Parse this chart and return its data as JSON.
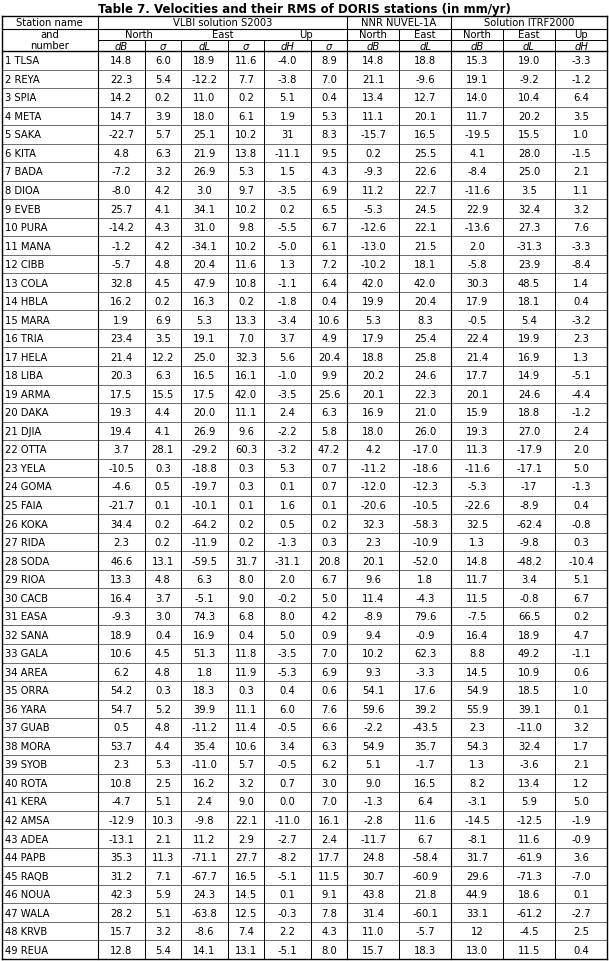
{
  "title": "Table 7. Velocities and their RMS of DORIS stations (in mm/yr)",
  "rows": [
    [
      "1 TLSA",
      "14.8",
      "6.0",
      "18.9",
      "11.6",
      "-4.0",
      "8.9",
      "14.8",
      "18.8",
      "15.3",
      "19.0",
      "-3.3"
    ],
    [
      "2 REYA",
      "22.3",
      "5.4",
      "-12.2",
      "7.7",
      "-3.8",
      "7.0",
      "21.1",
      "-9.6",
      "19.1",
      "-9.2",
      "-1.2"
    ],
    [
      "3 SPIA",
      "14.2",
      "0.2",
      "11.0",
      "0.2",
      "5.1",
      "0.4",
      "13.4",
      "12.7",
      "14.0",
      "10.4",
      "6.4"
    ],
    [
      "4 META",
      "14.7",
      "3.9",
      "18.0",
      "6.1",
      "1.9",
      "5.3",
      "11.1",
      "20.1",
      "11.7",
      "20.2",
      "3.5"
    ],
    [
      "5 SAKA",
      "-22.7",
      "5.7",
      "25.1",
      "10.2",
      "31",
      "8.3",
      "-15.7",
      "16.5",
      "-19.5",
      "15.5",
      "1.0"
    ],
    [
      "6 KITA",
      "4.8",
      "6.3",
      "21.9",
      "13.8",
      "-11.1",
      "9.5",
      "0.2",
      "25.5",
      "4.1",
      "28.0",
      "-1.5"
    ],
    [
      "7 BADA",
      "-7.2",
      "3.2",
      "26.9",
      "5.3",
      "1.5",
      "4.3",
      "-9.3",
      "22.6",
      "-8.4",
      "25.0",
      "2.1"
    ],
    [
      "8 DIOA",
      "-8.0",
      "4.2",
      "3.0",
      "9.7",
      "-3.5",
      "6.9",
      "11.2",
      "22.7",
      "-11.6",
      "3.5",
      "1.1"
    ],
    [
      "9 EVEB",
      "25.7",
      "4.1",
      "34.1",
      "10.2",
      "0.2",
      "6.5",
      "-5.3",
      "24.5",
      "22.9",
      "32.4",
      "3.2"
    ],
    [
      "10 PURA",
      "-14.2",
      "4.3",
      "31.0",
      "9.8",
      "-5.5",
      "6.7",
      "-12.6",
      "22.1",
      "-13.6",
      "27.3",
      "7.6"
    ],
    [
      "11 MANA",
      "-1.2",
      "4.2",
      "-34.1",
      "10.2",
      "-5.0",
      "6.1",
      "-13.0",
      "21.5",
      "2.0",
      "-31.3",
      "-3.3"
    ],
    [
      "12 CIBB",
      "-5.7",
      "4.8",
      "20.4",
      "11.6",
      "1.3",
      "7.2",
      "-10.2",
      "18.1",
      "-5.8",
      "23.9",
      "-8.4"
    ],
    [
      "13 COLA",
      "32.8",
      "4.5",
      "47.9",
      "10.8",
      "-1.1",
      "6.4",
      "42.0",
      "42.0",
      "30.3",
      "48.5",
      "1.4"
    ],
    [
      "14 HBLA",
      "16.2",
      "0.2",
      "16.3",
      "0.2",
      "-1.8",
      "0.4",
      "19.9",
      "20.4",
      "17.9",
      "18.1",
      "0.4"
    ],
    [
      "15 MARA",
      "1.9",
      "6.9",
      "5.3",
      "13.3",
      "-3.4",
      "10.6",
      "5.3",
      "8.3",
      "-0.5",
      "5.4",
      "-3.2"
    ],
    [
      "16 TRIA",
      "23.4",
      "3.5",
      "19.1",
      "7.0",
      "3.7",
      "4.9",
      "17.9",
      "25.4",
      "22.4",
      "19.9",
      "2.3"
    ],
    [
      "17 HELA",
      "21.4",
      "12.2",
      "25.0",
      "32.3",
      "5.6",
      "20.4",
      "18.8",
      "25.8",
      "21.4",
      "16.9",
      "1.3"
    ],
    [
      "18 LIBA",
      "20.3",
      "6.3",
      "16.5",
      "16.1",
      "-1.0",
      "9.9",
      "20.2",
      "24.6",
      "17.7",
      "14.9",
      "-5.1"
    ],
    [
      "19 ARMA",
      "17.5",
      "15.5",
      "17.5",
      "42.0",
      "-3.5",
      "25.6",
      "20.1",
      "22.3",
      "20.1",
      "24.6",
      "-4.4"
    ],
    [
      "20 DAKA",
      "19.3",
      "4.4",
      "20.0",
      "11.1",
      "2.4",
      "6.3",
      "16.9",
      "21.0",
      "15.9",
      "18.8",
      "-1.2"
    ],
    [
      "21 DJIA",
      "19.4",
      "4.1",
      "26.9",
      "9.6",
      "-2.2",
      "5.8",
      "18.0",
      "26.0",
      "19.3",
      "27.0",
      "2.4"
    ],
    [
      "22 OTTA",
      "3.7",
      "28.1",
      "-29.2",
      "60.3",
      "-3.2",
      "47.2",
      "4.2",
      "-17.0",
      "11.3",
      "-17.9",
      "2.0"
    ],
    [
      "23 YELA",
      "-10.5",
      "0.3",
      "-18.8",
      "0.3",
      "5.3",
      "0.7",
      "-11.2",
      "-18.6",
      "-11.6",
      "-17.1",
      "5.0"
    ],
    [
      "24 GOMA",
      "-4.6",
      "0.5",
      "-19.7",
      "0.3",
      "0.1",
      "0.7",
      "-12.0",
      "-12.3",
      "-5.3",
      "-17",
      "-1.3"
    ],
    [
      "25 FAIA",
      "-21.7",
      "0.1",
      "-10.1",
      "0.1",
      "1.6",
      "0.1",
      "-20.6",
      "-10.5",
      "-22.6",
      "-8.9",
      "0.4"
    ],
    [
      "26 KOKA",
      "34.4",
      "0.2",
      "-64.2",
      "0.2",
      "0.5",
      "0.2",
      "32.3",
      "-58.3",
      "32.5",
      "-62.4",
      "-0.8"
    ],
    [
      "27 RIDA",
      "2.3",
      "0.2",
      "-11.9",
      "0.2",
      "-1.3",
      "0.3",
      "2.3",
      "-10.9",
      "1.3",
      "-9.8",
      "0.3"
    ],
    [
      "28 SODA",
      "46.6",
      "13.1",
      "-59.5",
      "31.7",
      "-31.1",
      "20.8",
      "20.1",
      "-52.0",
      "14.8",
      "-48.2",
      "-10.4"
    ],
    [
      "29 RIOA",
      "13.3",
      "4.8",
      "6.3",
      "8.0",
      "2.0",
      "6.7",
      "9.6",
      "1.8",
      "11.7",
      "3.4",
      "5.1"
    ],
    [
      "30 CACB",
      "16.4",
      "3.7",
      "-5.1",
      "9.0",
      "-0.2",
      "5.0",
      "11.4",
      "-4.3",
      "11.5",
      "-0.8",
      "6.7"
    ],
    [
      "31 EASA",
      "-9.3",
      "3.0",
      "74.3",
      "6.8",
      "8.0",
      "4.2",
      "-8.9",
      "79.6",
      "-7.5",
      "66.5",
      "0.2"
    ],
    [
      "32 SANA",
      "18.9",
      "0.4",
      "16.9",
      "0.4",
      "5.0",
      "0.9",
      "9.4",
      "-0.9",
      "16.4",
      "18.9",
      "4.7"
    ],
    [
      "33 GALA",
      "10.6",
      "4.5",
      "51.3",
      "11.8",
      "-3.5",
      "7.0",
      "10.2",
      "62.3",
      "8.8",
      "49.2",
      "-1.1"
    ],
    [
      "34 AREA",
      "6.2",
      "4.8",
      "1.8",
      "11.9",
      "-5.3",
      "6.9",
      "9.3",
      "-3.3",
      "14.5",
      "10.9",
      "0.6"
    ],
    [
      "35 ORRA",
      "54.2",
      "0.3",
      "18.3",
      "0.3",
      "0.4",
      "0.6",
      "54.1",
      "17.6",
      "54.9",
      "18.5",
      "1.0"
    ],
    [
      "36 YARA",
      "54.7",
      "5.2",
      "39.9",
      "11.1",
      "6.0",
      "7.6",
      "59.6",
      "39.2",
      "55.9",
      "39.1",
      "0.1"
    ],
    [
      "37 GUAB",
      "0.5",
      "4.8",
      "-11.2",
      "11.4",
      "-0.5",
      "6.6",
      "-2.2",
      "-43.5",
      "2.3",
      "-11.0",
      "3.2"
    ],
    [
      "38 MORA",
      "53.7",
      "4.4",
      "35.4",
      "10.6",
      "3.4",
      "6.3",
      "54.9",
      "35.7",
      "54.3",
      "32.4",
      "1.7"
    ],
    [
      "39 SYOB",
      "2.3",
      "5.3",
      "-11.0",
      "5.7",
      "-0.5",
      "6.2",
      "5.1",
      "-1.7",
      "1.3",
      "-3.6",
      "2.1"
    ],
    [
      "40 ROTA",
      "10.8",
      "2.5",
      "16.2",
      "3.2",
      "0.7",
      "3.0",
      "9.0",
      "16.5",
      "8.2",
      "13.4",
      "1.2"
    ],
    [
      "41 KERA",
      "-4.7",
      "5.1",
      "2.4",
      "9.0",
      "0.0",
      "7.0",
      "-1.3",
      "6.4",
      "-3.1",
      "5.9",
      "5.0"
    ],
    [
      "42 AMSA",
      "-12.9",
      "10.3",
      "-9.8",
      "22.1",
      "-11.0",
      "16.1",
      "-2.8",
      "11.6",
      "-14.5",
      "-12.5",
      "-1.9"
    ],
    [
      "43 ADEA",
      "-13.1",
      "2.1",
      "11.2",
      "2.9",
      "-2.7",
      "2.4",
      "-11.7",
      "6.7",
      "-8.1",
      "11.6",
      "-0.9"
    ],
    [
      "44 PAPB",
      "35.3",
      "11.3",
      "-71.1",
      "27.7",
      "-8.2",
      "17.7",
      "24.8",
      "-58.4",
      "31.7",
      "-61.9",
      "3.6"
    ],
    [
      "45 RAQB",
      "31.2",
      "7.1",
      "-67.7",
      "16.5",
      "-5.1",
      "11.5",
      "30.7",
      "-60.9",
      "29.6",
      "-71.3",
      "-7.0"
    ],
    [
      "46 NOUA",
      "42.3",
      "5.9",
      "24.3",
      "14.5",
      "0.1",
      "9.1",
      "43.8",
      "21.8",
      "44.9",
      "18.6",
      "0.1"
    ],
    [
      "47 WALA",
      "28.2",
      "5.1",
      "-63.8",
      "12.5",
      "-0.3",
      "7.8",
      "31.4",
      "-60.1",
      "33.1",
      "-61.2",
      "-2.7"
    ],
    [
      "48 KRVB",
      "15.7",
      "3.2",
      "-8.6",
      "7.4",
      "2.2",
      "4.3",
      "11.0",
      "-5.7",
      "12",
      "-4.5",
      "2.5"
    ],
    [
      "49 REUA",
      "12.8",
      "5.4",
      "14.1",
      "13.1",
      "-5.1",
      "8.0",
      "15.7",
      "18.3",
      "13.0",
      "11.5",
      "0.4"
    ]
  ],
  "bg_color": "#ffffff",
  "line_color": "#000000",
  "font_size": 7.2,
  "title_font_size": 8.5
}
